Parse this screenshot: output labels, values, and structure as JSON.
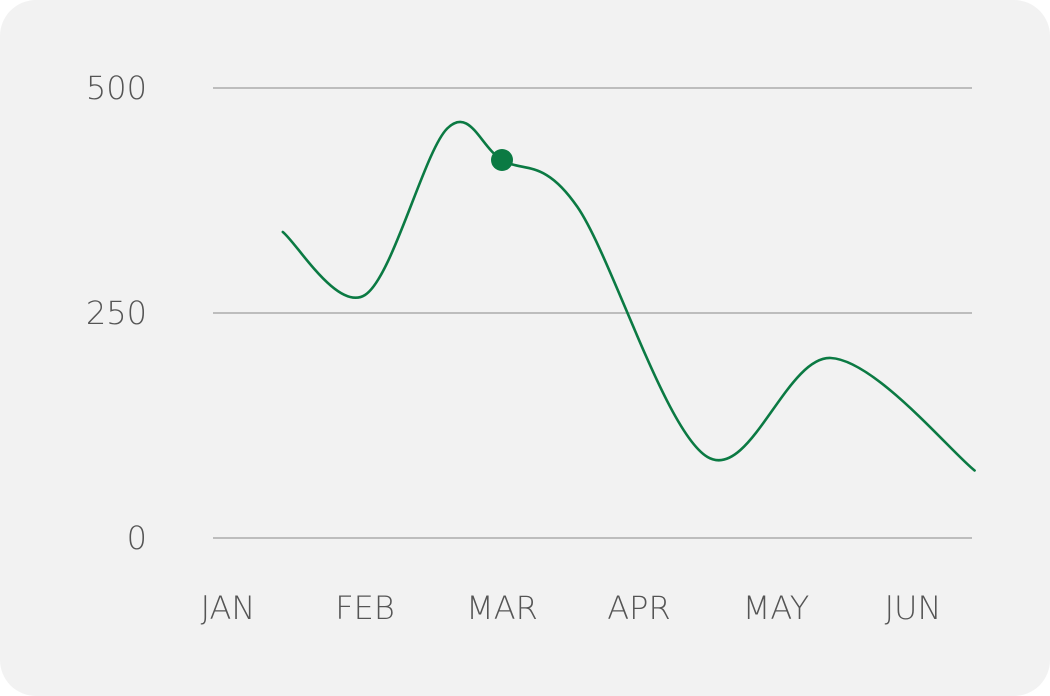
{
  "chart_data": {
    "type": "line",
    "categories": [
      "JAN",
      "FEB",
      "MAR",
      "APR",
      "MAY",
      "JUN"
    ],
    "ylim": [
      0,
      500
    ],
    "yticks": [
      0,
      250,
      500
    ],
    "grid": true,
    "smooth": true,
    "series": [
      {
        "color": "#0b7a43",
        "points": [
          {
            "x": 0.4,
            "y": 340
          },
          {
            "x": 1.0,
            "y": 270
          },
          {
            "x": 1.6,
            "y": 455
          },
          {
            "x": 2.0,
            "y": 420
          },
          {
            "x": 2.55,
            "y": 368
          },
          {
            "x": 3.5,
            "y": 90
          },
          {
            "x": 4.4,
            "y": 200
          },
          {
            "x": 5.45,
            "y": 75
          }
        ],
        "highlight": {
          "category": "MAR",
          "x": 2.0,
          "y": 420
        }
      }
    ]
  }
}
